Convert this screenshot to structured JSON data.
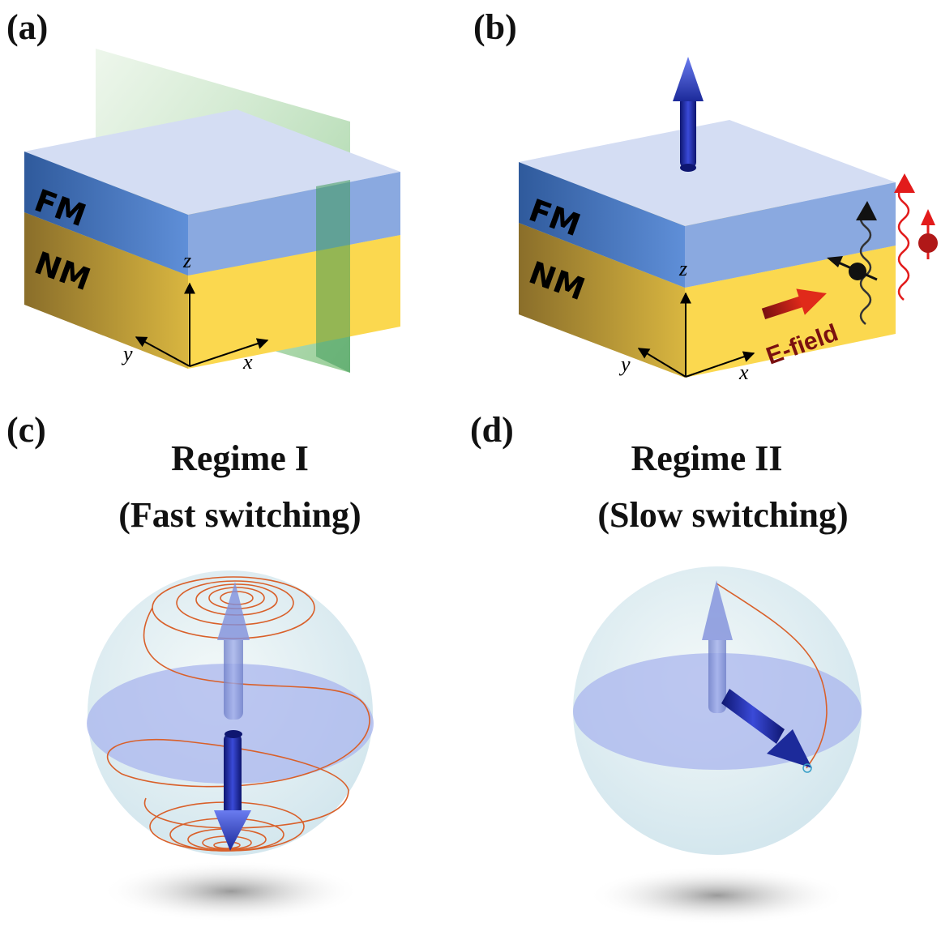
{
  "panels": {
    "a": {
      "label": "(a)",
      "fm": "FM",
      "nm": "NM",
      "axes": {
        "x": "x",
        "y": "y",
        "z": "z"
      }
    },
    "b": {
      "label": "(b)",
      "fm": "FM",
      "nm": "NM",
      "axes": {
        "x": "x",
        "y": "y",
        "z": "z"
      },
      "field_label": "E-field"
    },
    "c": {
      "label": "(c)",
      "title_line1": "Regime I",
      "title_line2": "(Fast switching)"
    },
    "d": {
      "label": "(d)",
      "title_line1": "Regime II",
      "title_line2": "(Slow switching)"
    }
  },
  "colors": {
    "fm_layer": "#7fa3dc",
    "nm_layer": "#f2cf4a",
    "plane": "#5fb35f",
    "magnetization_arrow": "#1c2a9a",
    "trajectory": "#d9602a",
    "electric_field_arrow": "#c0201a"
  }
}
